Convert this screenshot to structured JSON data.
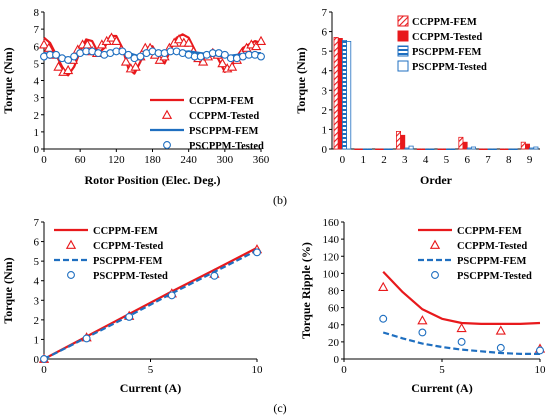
{
  "panel_labels": {
    "b": "(b)",
    "c": "(c)"
  },
  "colors": {
    "ccppm": "#e8191c",
    "psppm": "#1f6fc0",
    "axis": "#000000"
  },
  "chart_data": [
    {
      "id": "torque_vs_position",
      "type": "line",
      "xlabel": "Rotor Position (Elec. Deg.)",
      "ylabel": "Torque (Nm)",
      "xlim": [
        0,
        360
      ],
      "ylim": [
        0,
        8
      ],
      "xticks": [
        0,
        60,
        120,
        180,
        240,
        300,
        360
      ],
      "yticks": [
        0,
        1,
        2,
        3,
        4,
        5,
        6,
        7,
        8
      ],
      "legend_position": "bottom-right",
      "series": [
        {
          "name": "CCPPM-FEM",
          "style": "line",
          "color": "#e8191c",
          "x": [
            0,
            10,
            20,
            30,
            40,
            50,
            60,
            70,
            80,
            90,
            100,
            110,
            120,
            130,
            140,
            150,
            160,
            170,
            180,
            190,
            200,
            210,
            220,
            230,
            240,
            250,
            260,
            270,
            280,
            290,
            300,
            310,
            320,
            330,
            340,
            350,
            360
          ],
          "y": [
            6.5,
            6.2,
            5.5,
            4.8,
            4.3,
            4.8,
            5.7,
            6.4,
            6.3,
            5.6,
            5.9,
            6.6,
            6.6,
            5.9,
            4.7,
            4.4,
            5.1,
            5.9,
            6.0,
            5.4,
            5.0,
            5.8,
            6.5,
            6.7,
            6.5,
            5.8,
            5.0,
            5.3,
            5.8,
            5.2,
            4.5,
            4.7,
            5.4,
            5.9,
            6.1,
            6.3,
            6.2
          ]
        },
        {
          "name": "CCPPM-Tested",
          "style": "triangle",
          "color": "#e8191c",
          "x": [
            0,
            8,
            16,
            24,
            32,
            40,
            48,
            56,
            64,
            72,
            80,
            88,
            96,
            104,
            112,
            120,
            128,
            136,
            144,
            152,
            160,
            168,
            176,
            184,
            192,
            200,
            208,
            216,
            224,
            232,
            240,
            248,
            256,
            264,
            272,
            280,
            288,
            296,
            304,
            312,
            320,
            328,
            336,
            344,
            352,
            360
          ],
          "y": [
            6.1,
            5.9,
            5.5,
            4.8,
            4.5,
            4.6,
            5.2,
            5.8,
            6.1,
            6.1,
            5.7,
            5.6,
            6.1,
            6.3,
            6.5,
            6.3,
            5.8,
            5.1,
            4.7,
            4.8,
            5.4,
            5.9,
            5.9,
            5.5,
            5.2,
            5.4,
            5.9,
            6.2,
            6.4,
            6.2,
            6.2,
            5.7,
            5.3,
            5.1,
            5.4,
            5.6,
            5.5,
            5.0,
            4.7,
            4.8,
            5.2,
            5.6,
            5.9,
            6.1,
            6.0,
            6.3
          ]
        },
        {
          "name": "PSCPPM-FEM",
          "style": "line",
          "color": "#1f6fc0",
          "x": [
            0,
            20,
            40,
            60,
            80,
            100,
            120,
            140,
            160,
            180,
            200,
            220,
            240,
            260,
            280,
            300,
            320,
            340,
            360
          ],
          "y": [
            5.6,
            5.5,
            5.3,
            5.5,
            5.7,
            5.6,
            5.8,
            5.6,
            5.4,
            5.6,
            5.7,
            5.6,
            5.7,
            5.6,
            5.5,
            5.4,
            5.5,
            5.6,
            5.6
          ]
        },
        {
          "name": "PSCPPM-Tested",
          "style": "circle",
          "color": "#1f6fc0",
          "x": [
            0,
            10,
            20,
            30,
            40,
            50,
            60,
            70,
            80,
            90,
            100,
            110,
            120,
            130,
            140,
            150,
            160,
            170,
            180,
            190,
            200,
            210,
            220,
            230,
            240,
            250,
            260,
            270,
            280,
            290,
            300,
            310,
            320,
            330,
            340,
            350,
            360
          ],
          "y": [
            5.4,
            5.5,
            5.5,
            5.3,
            5.2,
            5.4,
            5.6,
            5.7,
            5.7,
            5.6,
            5.5,
            5.6,
            5.7,
            5.7,
            5.5,
            5.3,
            5.4,
            5.6,
            5.7,
            5.6,
            5.6,
            5.7,
            5.7,
            5.6,
            5.5,
            5.4,
            5.4,
            5.5,
            5.6,
            5.6,
            5.5,
            5.3,
            5.3,
            5.4,
            5.5,
            5.5,
            5.4
          ]
        }
      ]
    },
    {
      "id": "harmonic_spectrum",
      "type": "bar",
      "xlabel": "Order",
      "ylabel": "Torque (Nm)",
      "categories": [
        "0",
        "1",
        "2",
        "3",
        "4",
        "5",
        "6",
        "7",
        "8",
        "9"
      ],
      "ylim": [
        0,
        7
      ],
      "yticks": [
        0,
        1,
        2,
        3,
        4,
        5,
        6,
        7
      ],
      "legend_position": "top-right",
      "series": [
        {
          "name": "CCPPM-FEM",
          "pattern": "hatched",
          "color": "#e8191c",
          "values": [
            5.7,
            0.0,
            0.0,
            0.9,
            0.0,
            0.0,
            0.6,
            0.0,
            0.0,
            0.35
          ]
        },
        {
          "name": "CCPPM-Tested",
          "pattern": "solid",
          "color": "#e8191c",
          "values": [
            5.65,
            0.0,
            0.0,
            0.7,
            0.0,
            0.0,
            0.35,
            0.0,
            0.0,
            0.25
          ]
        },
        {
          "name": "PSCPPM-FEM",
          "pattern": "striped",
          "color": "#1f6fc0",
          "values": [
            5.55,
            0.0,
            0.0,
            0.05,
            0.0,
            0.0,
            0.05,
            0.0,
            0.0,
            0.05
          ]
        },
        {
          "name": "PSCPPM-Tested",
          "pattern": "hollow",
          "color": "#1f6fc0",
          "values": [
            5.5,
            0.0,
            0.0,
            0.15,
            0.0,
            0.0,
            0.1,
            0.0,
            0.0,
            0.1
          ]
        }
      ]
    },
    {
      "id": "torque_vs_current",
      "type": "line",
      "xlabel": "Current (A)",
      "ylabel": "Torque (Nm)",
      "xlim": [
        0,
        10
      ],
      "ylim": [
        0,
        7
      ],
      "xticks": [
        0,
        5,
        10
      ],
      "yticks": [
        0,
        1,
        2,
        3,
        4,
        5,
        6,
        7
      ],
      "legend_position": "top-left",
      "series": [
        {
          "name": "CCPPM-FEM",
          "style": "line",
          "color": "#e8191c",
          "x": [
            0,
            2,
            4,
            6,
            8,
            10
          ],
          "y": [
            0,
            1.15,
            2.3,
            3.45,
            4.55,
            5.68
          ]
        },
        {
          "name": "CCPPM-Tested",
          "style": "triangle",
          "color": "#e8191c",
          "x": [
            0,
            2,
            4,
            6,
            8,
            10
          ],
          "y": [
            0,
            1.1,
            2.2,
            3.35,
            4.35,
            5.6
          ]
        },
        {
          "name": "PSCPPM-FEM",
          "style": "dashed",
          "color": "#1f6fc0",
          "x": [
            0,
            2,
            4,
            6,
            8,
            10
          ],
          "y": [
            0,
            1.1,
            2.2,
            3.35,
            4.45,
            5.55
          ]
        },
        {
          "name": "PSCPPM-Tested",
          "style": "circle",
          "color": "#1f6fc0",
          "x": [
            0,
            2,
            4,
            6,
            8,
            10
          ],
          "y": [
            0,
            1.05,
            2.15,
            3.25,
            4.25,
            5.45
          ]
        }
      ]
    },
    {
      "id": "ripple_vs_current",
      "type": "line",
      "xlabel": "Current (A)",
      "ylabel": "Torque Ripple (%)",
      "xlim": [
        0,
        10
      ],
      "ylim": [
        0,
        160
      ],
      "xticks": [
        0,
        5,
        10
      ],
      "yticks": [
        0,
        20,
        40,
        60,
        80,
        100,
        120,
        140,
        160
      ],
      "legend_position": "top-right",
      "series": [
        {
          "name": "CCPPM-FEM",
          "style": "line",
          "color": "#e8191c",
          "x": [
            2,
            3,
            4,
            5,
            6,
            7,
            8,
            9,
            10
          ],
          "y": [
            102,
            78,
            58,
            47,
            42,
            41,
            41,
            41,
            42
          ]
        },
        {
          "name": "CCPPM-Tested",
          "style": "triangle",
          "color": "#e8191c",
          "x": [
            2,
            4,
            6,
            8,
            10
          ],
          "y": [
            84,
            45,
            36,
            33,
            12
          ]
        },
        {
          "name": "PSCPPM-FEM",
          "style": "dashed",
          "color": "#1f6fc0",
          "x": [
            2,
            3,
            4,
            5,
            6,
            7,
            8,
            9,
            10
          ],
          "y": [
            31,
            24,
            18,
            14,
            11,
            9,
            7,
            6,
            6
          ]
        },
        {
          "name": "PSCPPM-Tested",
          "style": "circle",
          "color": "#1f6fc0",
          "x": [
            2,
            4,
            6,
            8,
            10
          ],
          "y": [
            47,
            31,
            20,
            13,
            10
          ]
        }
      ]
    }
  ]
}
